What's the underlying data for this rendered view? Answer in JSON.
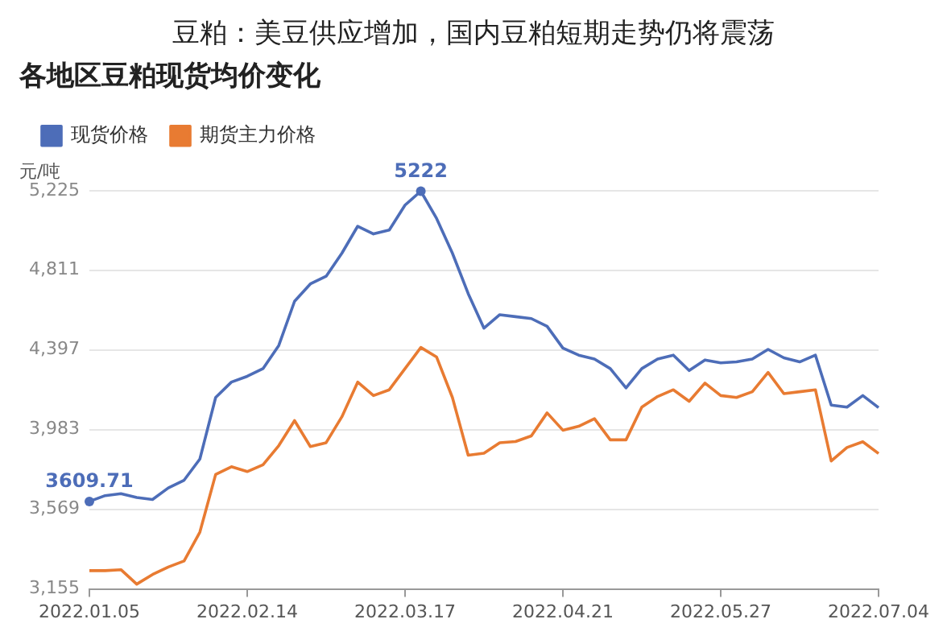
{
  "chart_data": {
    "type": "line",
    "title": "各地区豆粕现货均价变化",
    "subtitle": "豆粕：美豆供应增加，国内豆粕短期走势仍将震荡",
    "ylabel": "元/吨",
    "categories": [
      "2022.01.05",
      null,
      null,
      null,
      null,
      null,
      null,
      null,
      null,
      null,
      "2022.02.14",
      null,
      null,
      null,
      null,
      null,
      null,
      null,
      null,
      null,
      "2022.03.17",
      null,
      null,
      null,
      null,
      null,
      null,
      null,
      null,
      null,
      "2022.04.21",
      null,
      null,
      null,
      null,
      null,
      null,
      null,
      null,
      null,
      "2022.05.27",
      null,
      null,
      null,
      null,
      null,
      null,
      null,
      null,
      null,
      "2022.07.04"
    ],
    "series": [
      {
        "name": "现货价格",
        "color": "#4d6db8",
        "values": [
          3609.71,
          3640,
          3650,
          3630,
          3620,
          3680,
          3720,
          3830,
          4150,
          4230,
          4260,
          4300,
          4420,
          4650,
          4740,
          4780,
          4900,
          5040,
          5000,
          5020,
          5150,
          5222,
          5080,
          4900,
          4690,
          4510,
          4580,
          4570,
          4560,
          4520,
          4407,
          4370,
          4350,
          4300,
          4200,
          4300,
          4350,
          4370,
          4290,
          4345,
          4330,
          4335,
          4350,
          4400,
          4356,
          4335,
          4370,
          4110,
          4100,
          4160,
          4097
        ],
        "value_labels": [
          "3609.71",
          null,
          null,
          null,
          null,
          null,
          null,
          null,
          null,
          null,
          null,
          null,
          null,
          null,
          null,
          null,
          null,
          null,
          null,
          null,
          null,
          "5222",
          null,
          null,
          null,
          null,
          null,
          null,
          null,
          null,
          null,
          null,
          null,
          null,
          null,
          null,
          null,
          null,
          null,
          null,
          null,
          null,
          null,
          null,
          null,
          null,
          null,
          null,
          null,
          null,
          null
        ]
      },
      {
        "name": "期货主力价格",
        "color": "#e87b32",
        "values": [
          3250,
          3250,
          3255,
          3180,
          3230,
          3269,
          3300,
          3450,
          3750,
          3790,
          3765,
          3800,
          3900,
          4030,
          3895,
          3915,
          4050,
          4230,
          4160,
          4190,
          4300,
          4410,
          4360,
          4150,
          3850,
          3860,
          3915,
          3921,
          3950,
          4070,
          3980,
          4000,
          4040,
          3930,
          3930,
          4100,
          4155,
          4190,
          4130,
          4225,
          4160,
          4150,
          4180,
          4280,
          4170,
          4180,
          4190,
          3820,
          3890,
          3920,
          3859
        ]
      }
    ],
    "ylim": [
      3155,
      5225
    ],
    "yticks": [
      {
        "value": 3155,
        "label": "3,155"
      },
      {
        "value": 3569,
        "label": "3,569"
      },
      {
        "value": 3983,
        "label": "3,983"
      },
      {
        "value": 4397,
        "label": "4,397"
      },
      {
        "value": 4811,
        "label": "4,811"
      },
      {
        "value": 5225,
        "label": "5,225"
      }
    ],
    "grid": "y",
    "legend": "top left"
  }
}
